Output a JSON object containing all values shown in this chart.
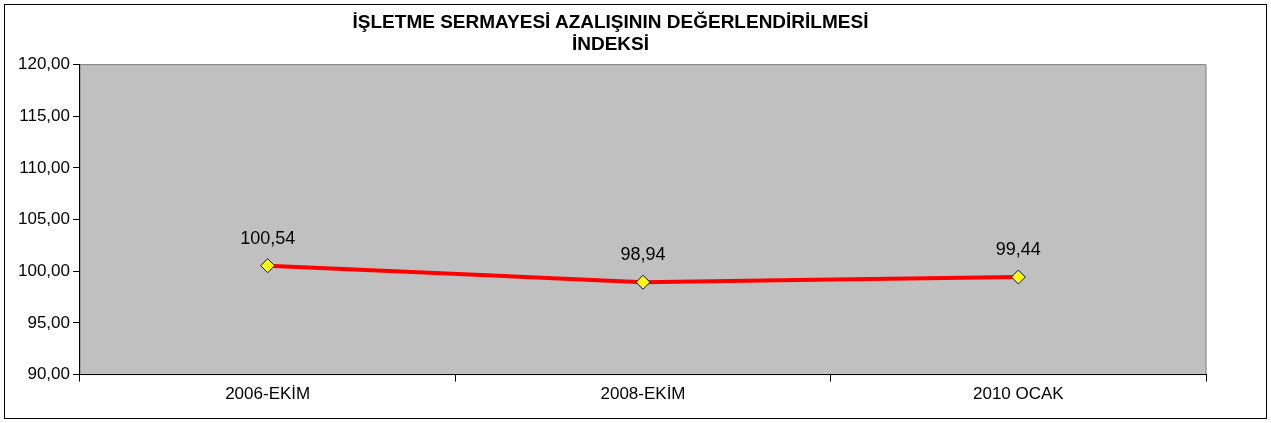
{
  "chart_data": {
    "type": "line",
    "title": "İŞLETME SERMAYESİ AZALIŞININ DEĞERLENDİRİLMESİ\nİNDEKSİ",
    "categories": [
      "2006-EKİM",
      "2008-EKİM",
      "2010 OCAK"
    ],
    "series": [
      {
        "color": "#ff0000",
        "values": [
          100.54,
          98.94,
          99.44
        ],
        "value_labels": [
          "100,54",
          "98,94",
          "99,44"
        ]
      }
    ],
    "ylim": [
      90,
      120
    ],
    "yticks": [
      {
        "value": 90,
        "label": "90,00"
      },
      {
        "value": 95,
        "label": "95,00"
      },
      {
        "value": 100,
        "label": "100,00"
      },
      {
        "value": 105,
        "label": "105,00"
      },
      {
        "value": 110,
        "label": "110,00"
      },
      {
        "value": 115,
        "label": "115,00"
      },
      {
        "value": 120,
        "label": "120,00"
      }
    ],
    "grid": false,
    "legend": false,
    "marker": "diamond",
    "line_style": "solid"
  }
}
